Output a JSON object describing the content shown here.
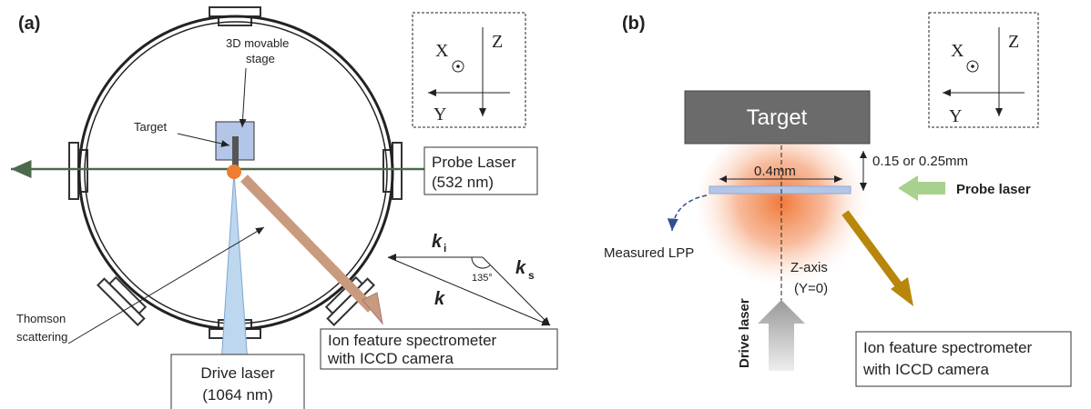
{
  "panels": [
    {
      "label": "(a)",
      "axes": {
        "x": "X",
        "z": "Z",
        "y": "Y"
      },
      "stage": [
        "3D movable",
        "stage"
      ],
      "target": "Target",
      "probe": [
        "Probe Laser",
        "(532 nm)"
      ],
      "vectors": {
        "ki": "k",
        "ki_sub": "i",
        "ks": "k",
        "ks_sub": "s",
        "k": "k",
        "angle": "135°"
      },
      "thomson": [
        "Thomson",
        "scattering"
      ],
      "drive": [
        "Drive laser",
        "(1064 nm)"
      ],
      "spectrometer": [
        "Ion feature spectrometer",
        "with ICCD camera"
      ]
    },
    {
      "label": "(b)",
      "axes": {
        "x": "X",
        "z": "Z",
        "y": "Y"
      },
      "target": "Target",
      "gap": "0.15 or 0.25mm",
      "width": "0.4mm",
      "probe": "Probe laser",
      "lpp": "Measured LPP",
      "zaxis": [
        "Z-axis",
        "(Y=0)"
      ],
      "drive": "Drive laser",
      "spectrometer": [
        "Ion feature spectrometer",
        "with ICCD camera"
      ]
    }
  ]
}
